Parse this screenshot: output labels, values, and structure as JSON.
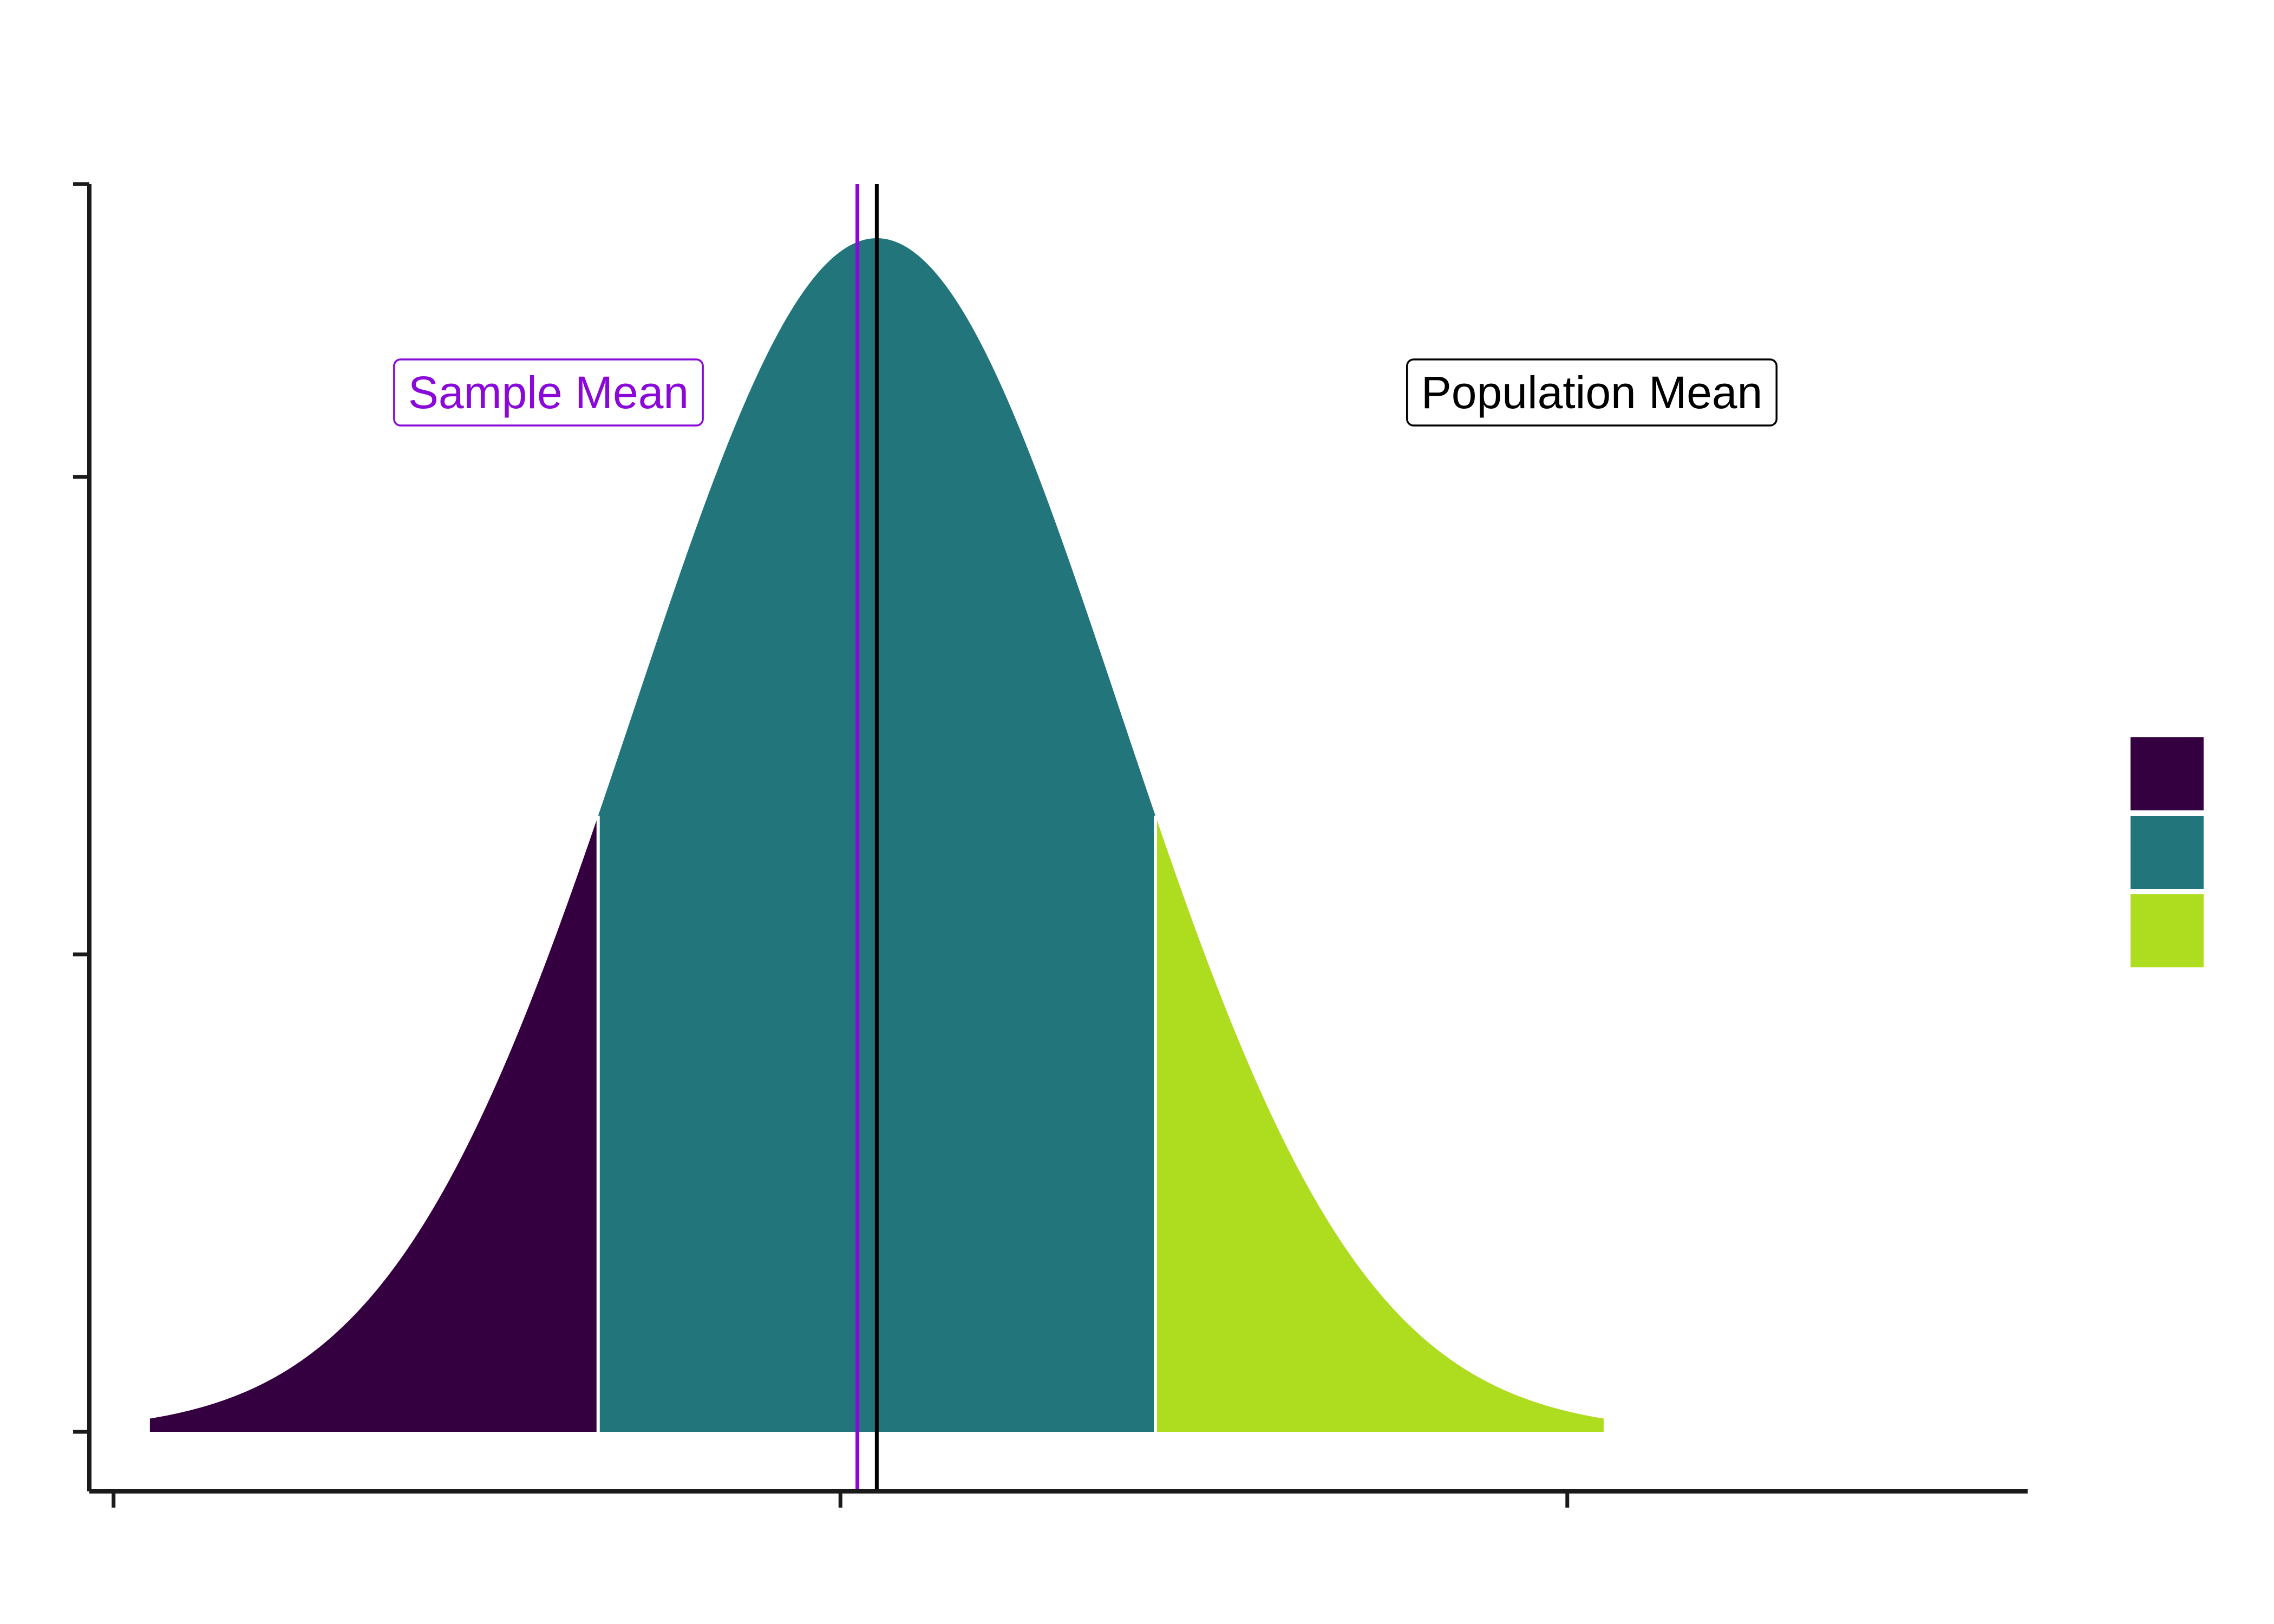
{
  "chart_data": {
    "type": "area",
    "title": "",
    "xlabel": "",
    "ylabel": "",
    "distribution": {
      "kind": "normal",
      "mean": 0,
      "sd": 1
    },
    "xlim": [
      -3.25,
      4.75
    ],
    "ylim": [
      -0.057,
      1.2
    ],
    "x_ticks": [
      -3.15,
      -0.15,
      2.85
    ],
    "y_ticks": [
      0,
      0.4,
      0.8,
      1.2
    ],
    "regions": [
      {
        "from": -3.0,
        "to": -1.15,
        "color": "#35003f"
      },
      {
        "from": -1.15,
        "to": 1.15,
        "color": "#21757b"
      },
      {
        "from": 1.15,
        "to": 3.0,
        "color": "#aedd1f"
      }
    ],
    "sample_mean": {
      "x": -0.08,
      "label": "Sample Mean",
      "color": "#8a08d8"
    },
    "population_mean": {
      "x": 0,
      "label": "Population Mean",
      "color": "#000000"
    },
    "legend": {
      "placement": "right",
      "colors": [
        "#35003f",
        "#21757b",
        "#aedd1f"
      ]
    },
    "grid": false
  }
}
